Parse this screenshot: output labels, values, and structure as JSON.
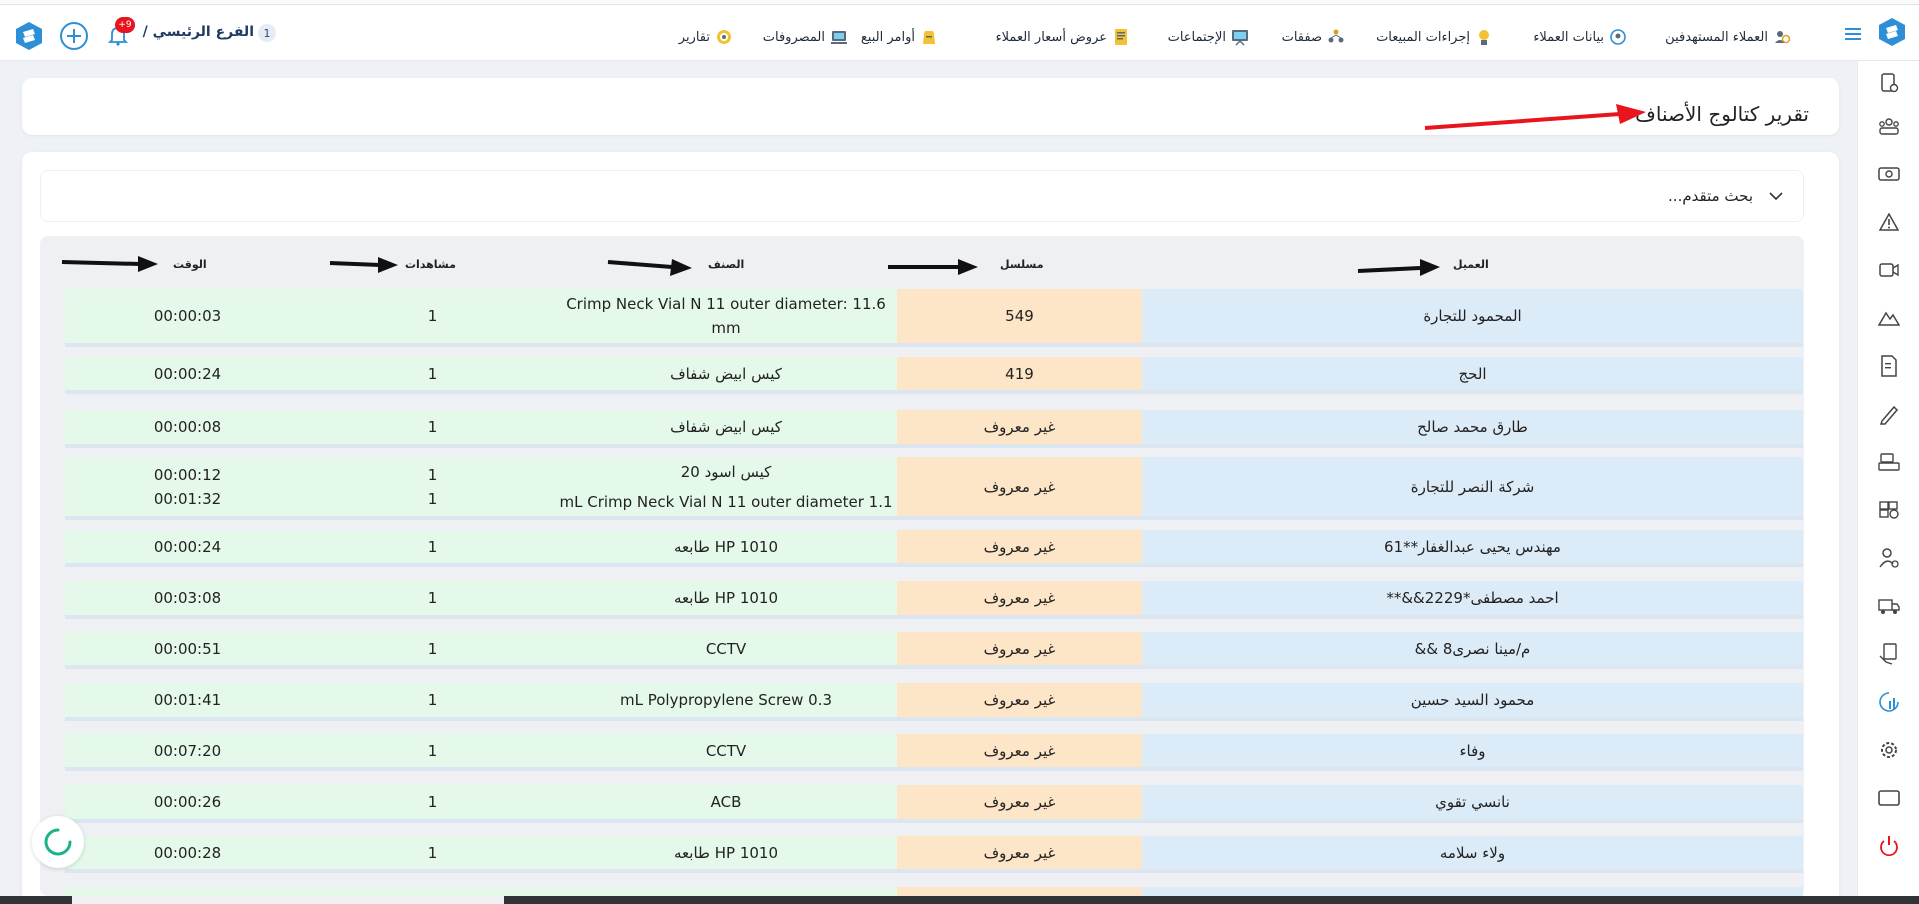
{
  "header": {
    "branch_label": "الفرع الرئيسي /",
    "branch_count": "1",
    "notification_count": "+9"
  },
  "nav": [
    {
      "label": "العملاء المستهدفين",
      "icon": "target-customers-icon"
    },
    {
      "label": "بيانات العملاء",
      "icon": "customer-data-icon"
    },
    {
      "label": "إجراءات المبيعات",
      "icon": "sales-actions-icon"
    },
    {
      "label": "صفقات",
      "icon": "deals-icon"
    },
    {
      "label": "الإجتماعات",
      "icon": "meetings-icon"
    },
    {
      "label": "عروض أسعار العملاء",
      "icon": "quotes-icon"
    },
    {
      "label": "أوامر البيع",
      "icon": "sales-orders-icon"
    },
    {
      "label": "المصروفات",
      "icon": "expenses-icon"
    },
    {
      "label": "تقارير",
      "icon": "reports-icon"
    }
  ],
  "page": {
    "title": "تقرير كتالوج الأصناف",
    "search_label": "بحث متقدم..."
  },
  "table": {
    "columns": {
      "client": "العميل",
      "serial": "مسلسل",
      "item": "الصنف",
      "views": "مشاهدات",
      "time": "الوقت"
    },
    "rows": [
      {
        "client": "المحمود للتجارة",
        "serial": "549",
        "items": [
          {
            "item": "Crimp Neck Vial N 11 outer diameter: 11.6 mm",
            "views": "1",
            "time": "00:00:03"
          }
        ]
      },
      {
        "client": "الحج",
        "serial": "419",
        "items": [
          {
            "item": "كيس ابيض شفاف",
            "views": "1",
            "time": "00:00:24"
          }
        ]
      },
      {
        "client": "طارق محمد صالح",
        "serial": "غير معروف",
        "items": [
          {
            "item": "كيس ابيض شفاف",
            "views": "1",
            "time": "00:00:08"
          }
        ]
      },
      {
        "client": "شركة النصر للتجارة",
        "serial": "غير معروف",
        "items": [
          {
            "item": "كيس اسود 20",
            "views": "1",
            "time": "00:00:12"
          },
          {
            "item": "mL Crimp Neck Vial N 11 outer diameter 1.1",
            "views": "1",
            "time": "00:01:32"
          }
        ]
      },
      {
        "client": "مهندس يحيى عبدالغفار**61",
        "serial": "غير معروف",
        "items": [
          {
            "item": "طابعه HP 1010",
            "views": "1",
            "time": "00:00:24"
          }
        ]
      },
      {
        "client": "احمد مصطفى*2229&&**",
        "serial": "غير معروف",
        "items": [
          {
            "item": "طابعه HP 1010",
            "views": "1",
            "time": "00:03:08"
          }
        ]
      },
      {
        "client": "م/مينا نصرى8 &&",
        "serial": "غير معروف",
        "items": [
          {
            "item": "CCTV",
            "views": "1",
            "time": "00:00:51"
          }
        ]
      },
      {
        "client": "محمود السيد حسين",
        "serial": "غير معروف",
        "items": [
          {
            "item": "mL Polypropylene Screw 0.3",
            "views": "1",
            "time": "00:01:41"
          }
        ]
      },
      {
        "client": "وفاء",
        "serial": "غير معروف",
        "items": [
          {
            "item": "CCTV",
            "views": "1",
            "time": "00:07:20"
          }
        ]
      },
      {
        "client": "نانسي تقوي",
        "serial": "غير معروف",
        "items": [
          {
            "item": "ACB",
            "views": "1",
            "time": "00:00:26"
          }
        ]
      },
      {
        "client": "ولاء سلامه",
        "serial": "غير معروف",
        "items": [
          {
            "item": "طابعه HP 1010",
            "views": "1",
            "time": "00:00:28"
          }
        ]
      }
    ]
  },
  "colors": {
    "accent": "#2d8fd6",
    "client_bg": "#dcebf8",
    "serial_bg": "#fde6c8",
    "item_bg": "#e4f9ea",
    "arrow_red": "#e8141e"
  }
}
